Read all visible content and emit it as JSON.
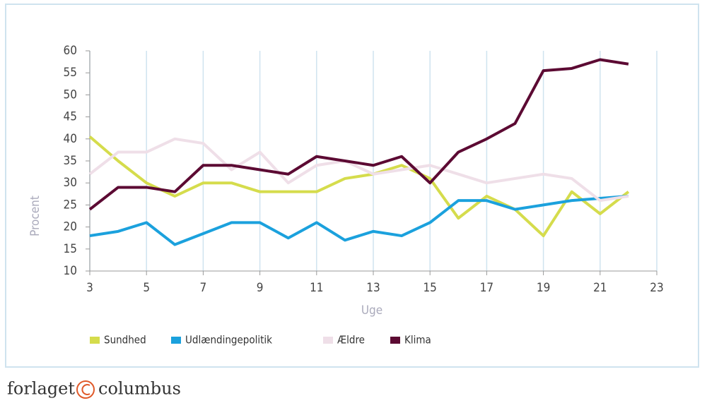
{
  "chart_data": {
    "type": "line",
    "x_label": "Uge",
    "y_label": "Procent",
    "x": [
      3,
      4,
      5,
      6,
      7,
      8,
      9,
      10,
      11,
      12,
      13,
      14,
      15,
      16,
      17,
      18,
      19,
      20,
      21,
      22
    ],
    "series": [
      {
        "name": "Sundhed",
        "color": "#d5dc4c",
        "values": [
          40.5,
          35,
          30,
          27,
          30,
          30,
          28,
          28,
          28,
          31,
          32,
          34,
          31,
          22,
          27,
          24,
          18,
          28,
          23,
          28
        ]
      },
      {
        "name": "Udlændingepolitik",
        "color": "#1ba1dd",
        "values": [
          18,
          19,
          21,
          16,
          18.5,
          21,
          21,
          17.5,
          21,
          17,
          19,
          18,
          21,
          26,
          26,
          24,
          25,
          26,
          26.5,
          27
        ]
      },
      {
        "name": "Ældre",
        "color": "#efdfe8",
        "values": [
          32,
          37,
          37,
          40,
          39,
          33,
          37,
          30,
          34,
          35,
          32,
          33,
          34,
          32,
          30,
          31,
          32,
          31,
          26,
          27
        ]
      },
      {
        "name": "Klima",
        "color": "#5c0a33",
        "values": [
          24,
          29,
          29,
          28,
          34,
          34,
          33,
          32,
          36,
          35,
          34,
          36,
          30,
          37,
          40,
          43.5,
          55.5,
          56,
          58,
          57
        ]
      }
    ],
    "xlim": [
      3,
      23
    ],
    "xticks": [
      3,
      5,
      7,
      9,
      11,
      13,
      15,
      17,
      19,
      21,
      23
    ],
    "ylim": [
      10,
      60
    ],
    "yticks": [
      10,
      15,
      20,
      25,
      30,
      35,
      40,
      45,
      50,
      55,
      60
    ],
    "grid": true,
    "legend": "bottom"
  },
  "footer": {
    "brand_left": "forlaget",
    "brand_right": "columbus"
  }
}
